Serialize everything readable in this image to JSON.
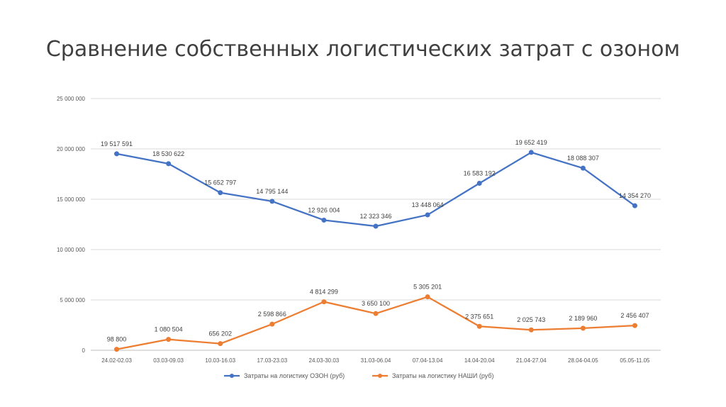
{
  "title": "Сравнение собственных логистических затрат с озоном",
  "chart_data": {
    "type": "line",
    "categories": [
      "24.02-02.03",
      "03.03-09.03",
      "10.03-16.03",
      "17.03-23.03",
      "24.03-30.03",
      "31.03-06.04",
      "07.04-13.04",
      "14.04-20.04",
      "21.04-27.04",
      "28.04-04.05",
      "05.05-11.05"
    ],
    "ylim": [
      0,
      25000000
    ],
    "yticks": [
      0,
      5000000,
      10000000,
      15000000,
      20000000,
      25000000
    ],
    "ytick_labels": [
      "0",
      "5 000 000",
      "10 000 000",
      "15 000 000",
      "20 000 000",
      "25 000 000"
    ],
    "grid": true,
    "legend_position": "bottom",
    "series": [
      {
        "name": "Затраты на логистику ОЗОН (руб)",
        "color": "#4472C4",
        "values": [
          19517591,
          18530622,
          15652797,
          14795144,
          12926004,
          12323346,
          13448064,
          16583192,
          19652419,
          18088307,
          14354270
        ],
        "labels": [
          "19 517 591",
          "18 530 622",
          "15 652 797",
          "14 795 144",
          "12 926 004",
          "12 323 346",
          "13 448 064",
          "16 583 192",
          "19 652 419",
          "18 088 307",
          "14 354 270"
        ]
      },
      {
        "name": "Затраты на логистику НАШИ (руб)",
        "color": "#ED7D31",
        "values": [
          98800,
          1080504,
          656202,
          2598866,
          4814299,
          3650100,
          5305201,
          2375651,
          2025743,
          2189960,
          2456407
        ],
        "labels": [
          "98 800",
          "1 080 504",
          "656 202",
          "2 598 866",
          "4 814 299",
          "3 650 100",
          "5 305 201",
          "2 375 651",
          "2 025 743",
          "2 189 960",
          "2 456 407"
        ]
      }
    ]
  }
}
